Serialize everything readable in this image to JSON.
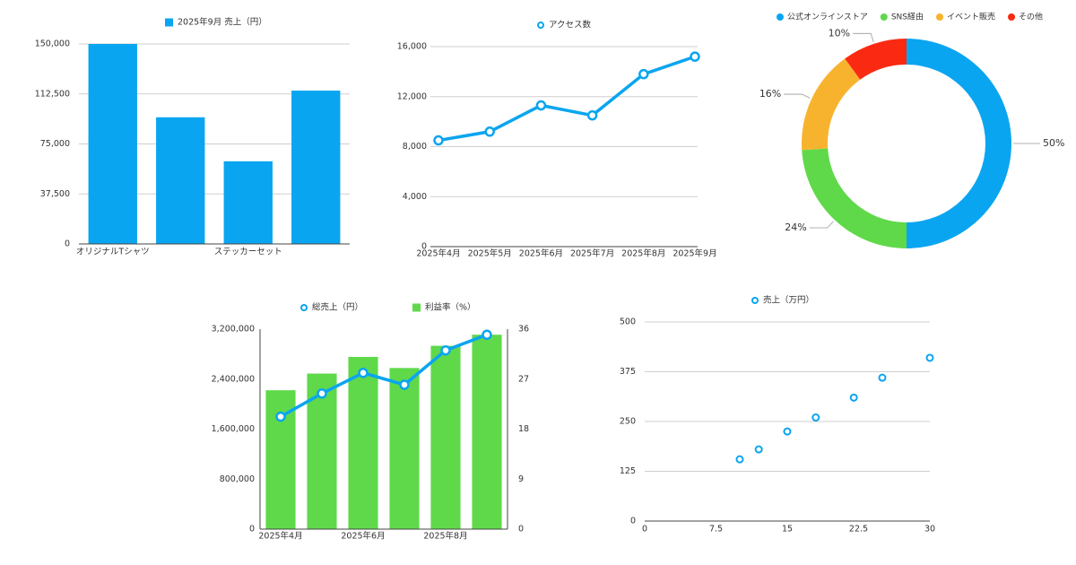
{
  "chart_data": [
    {
      "type": "bar",
      "legend": "2025年9月 売上（円）",
      "color": "#0aa5f0",
      "categories": [
        "オリジナルTシャツ",
        null,
        "ステッカーセット",
        null
      ],
      "values": [
        150000,
        95000,
        62000,
        115000
      ],
      "ylim": [
        0,
        150000
      ],
      "yticks": [
        0,
        {
          "value": 37500,
          "label": "37,500"
        },
        {
          "value": 75000,
          "label": "75,000"
        },
        {
          "value": 112500,
          "label": "112,500"
        },
        {
          "value": 150000,
          "label": "150,000"
        }
      ],
      "grid": true
    },
    {
      "type": "line",
      "legend": "アクセス数",
      "color": "#0aa5f0",
      "categories": [
        "2025年4月",
        "2025年5月",
        "2025年6月",
        "2025年7月",
        "2025年8月",
        "2025年9月"
      ],
      "values": [
        8500,
        9200,
        11300,
        10500,
        13800,
        15200
      ],
      "ylim": [
        0,
        16000
      ],
      "yticks": [
        0,
        {
          "value": 4000,
          "label": "4,000"
        },
        {
          "value": 8000,
          "label": "8,000"
        },
        {
          "value": 12000,
          "label": "12,000"
        },
        {
          "value": 16000,
          "label": "16,000"
        }
      ],
      "grid": true
    },
    {
      "type": "doughnut",
      "categories": [
        "公式オンラインストア",
        "SNS経由",
        "イベント販売",
        "その他"
      ],
      "values": [
        50,
        24,
        16,
        10
      ],
      "value_labels": [
        "50%",
        "24%",
        "16%",
        "10%"
      ],
      "colors": [
        "#0aa5f0",
        "#5fd94a",
        "#f8b32e",
        "#fa2a12"
      ]
    },
    {
      "type": "combo",
      "categories": [
        "2025年4月",
        null,
        "2025年6月",
        null,
        "2025年8月",
        null
      ],
      "series": [
        {
          "name": "総売上（円）",
          "type": "line",
          "color": "#0aa5f0",
          "values": [
            1800000,
            2170000,
            2500000,
            2310000,
            2860000,
            3110000
          ]
        },
        {
          "name": "利益率（%）",
          "type": "bar",
          "axis": "y2",
          "color": "#5fd94a",
          "values": [
            25,
            28,
            31,
            29,
            33,
            35
          ]
        }
      ],
      "ylim": [
        0,
        3200000
      ],
      "yticks": [
        0,
        {
          "value": 800000,
          "label": "800,000"
        },
        {
          "value": 1600000,
          "label": "1,600,000"
        },
        {
          "value": 2400000,
          "label": "2,400,000"
        },
        {
          "value": 3200000,
          "label": "3,200,000"
        }
      ],
      "y2lim": [
        0,
        36
      ],
      "y2ticks": [
        0,
        9,
        18,
        27,
        36
      ]
    },
    {
      "type": "scatter",
      "color": "#0aa5f0",
      "x": [
        10,
        12,
        15,
        18,
        22,
        25,
        30
      ],
      "series": [
        {
          "name": "売上（万円）",
          "color": "#0aa5f0",
          "values": [
            155,
            180,
            225,
            260,
            310,
            360,
            410
          ]
        }
      ],
      "xlim": [
        0,
        30
      ],
      "xticks": [
        0,
        7.5,
        15,
        22.5,
        30
      ],
      "ylim": [
        0,
        500
      ],
      "yticks": [
        0,
        125,
        250,
        375,
        500
      ],
      "grid": true
    }
  ]
}
